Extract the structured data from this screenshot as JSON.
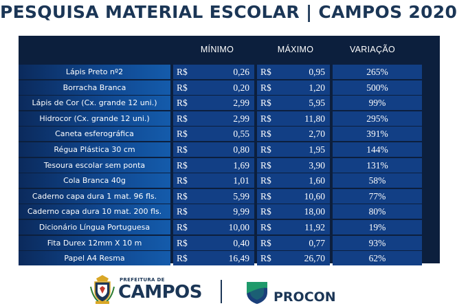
{
  "title": "PESQUISA MATERIAL ESCOLAR | CAMPOS 2020",
  "table": {
    "headers": {
      "min": "MÍNIMO",
      "max": "MÁXIMO",
      "var": "VARIAÇÃO"
    },
    "currency": "R$",
    "rows": [
      {
        "item": "Lápis Preto nº2",
        "min": "0,26",
        "max": "0,95",
        "var": "265%"
      },
      {
        "item": "Borracha Branca",
        "min": "0,20",
        "max": "1,20",
        "var": "500%"
      },
      {
        "item": "Lápis de Cor (Cx. grande 12 uni.)",
        "min": "2,99",
        "max": "5,95",
        "var": "99%"
      },
      {
        "item": "Hidrocor (Cx. grande 12 uni.)",
        "min": "2,99",
        "max": "11,80",
        "var": "295%"
      },
      {
        "item": "Caneta esferográfica",
        "min": "0,55",
        "max": "2,70",
        "var": "391%"
      },
      {
        "item": "Régua Plástica 30 cm",
        "min": "0,80",
        "max": "1,95",
        "var": "144%"
      },
      {
        "item": "Tesoura escolar sem ponta",
        "min": "1,69",
        "max": "3,90",
        "var": "131%"
      },
      {
        "item": "Cola Branca 40g",
        "min": "1,01",
        "max": "1,60",
        "var": "58%"
      },
      {
        "item": "Caderno capa dura 1 mat. 96 fls.",
        "min": "5,99",
        "max": "10,60",
        "var": "77%"
      },
      {
        "item": "Caderno capa dura 10 mat. 200 fls.",
        "min": "9,99",
        "max": "18,00",
        "var": "80%"
      },
      {
        "item": "Dicionário Língua Portuguesa",
        "min": "10,00",
        "max": "11,92",
        "var": "19%"
      },
      {
        "item": "Fita Durex 12mm X 10 m",
        "min": "0,40",
        "max": "0,77",
        "var": "93%"
      },
      {
        "item": "Papel A4 Resma",
        "min": "16,49",
        "max": "26,70",
        "var": "62%"
      }
    ]
  },
  "footer": {
    "prefeitura_small": "PREFEITURA DE",
    "prefeitura_big": "CAMPOS",
    "procon": "PROCON",
    "crest_icon": "coat-of-arms-icon",
    "shield_icon": "procon-shield-icon",
    "colors": {
      "navy": "#1b3656",
      "shield_green": "#1f9a6b",
      "shield_blue": "#1a3f7a"
    }
  }
}
